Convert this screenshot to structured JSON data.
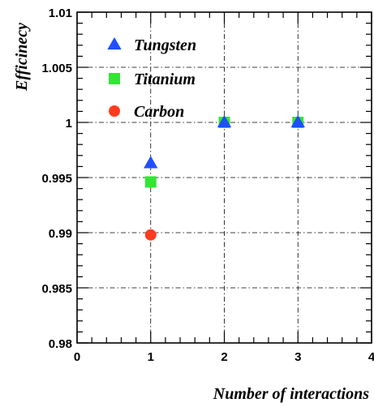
{
  "chart_data": {
    "type": "scatter",
    "title": "",
    "xlabel": "Number of interactions",
    "ylabel": "Efficinecy",
    "xlim": [
      0,
      4
    ],
    "ylim": [
      0.98,
      1.01
    ],
    "grid": true,
    "legend_position": "top-left",
    "x_ticks": [
      "0",
      "1",
      "2",
      "3",
      "4"
    ],
    "y_ticks": [
      "0.98",
      "0.985",
      "0.99",
      "0.995",
      "1",
      "1.005",
      "1.01"
    ],
    "series": [
      {
        "name": "Tungsten",
        "marker": "triangle",
        "color": "#1f4fff",
        "points": [
          {
            "x": 1,
            "y": 0.9963
          },
          {
            "x": 2,
            "y": 1.0
          },
          {
            "x": 3,
            "y": 1.0
          }
        ]
      },
      {
        "name": "Titanium",
        "marker": "square",
        "color": "#33e633",
        "points": [
          {
            "x": 1,
            "y": 0.9946
          },
          {
            "x": 2,
            "y": 1.0
          },
          {
            "x": 3,
            "y": 1.0
          }
        ]
      },
      {
        "name": "Carbon",
        "marker": "circle",
        "color": "#ff3b1f",
        "points": [
          {
            "x": 1,
            "y": 0.9898
          }
        ]
      }
    ]
  }
}
